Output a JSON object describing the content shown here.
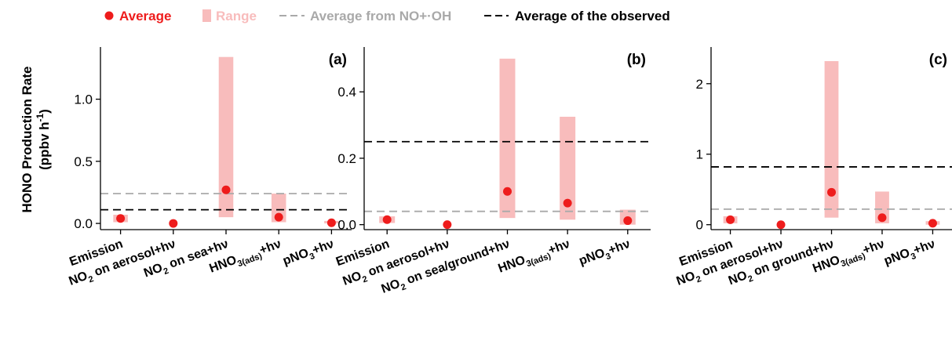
{
  "legend": {
    "items": [
      {
        "label": "Average",
        "kind": "dot",
        "color": "#ee1c1c"
      },
      {
        "label": "Range",
        "kind": "rect",
        "color": "#f8bcbc"
      },
      {
        "label": "Average from NO+·OH",
        "kind": "dash",
        "color": "#a9a9a9"
      },
      {
        "label": "Average of the observed",
        "kind": "dash",
        "color": "#000000"
      }
    ]
  },
  "ylabel": {
    "line1": "HONO Production Rate",
    "line2": "(ppbv h",
    "sup": "-1",
    "close": ")"
  },
  "colors": {
    "average": "#ee1c1c",
    "range": "#f8bcbc",
    "no_oh": "#a9a9a9",
    "observed": "#000000"
  },
  "chart_data": [
    {
      "type": "scatter-range",
      "panel_label": "(a)",
      "categories": [
        {
          "pre": "Emission",
          "sub": "",
          "post": ""
        },
        {
          "pre": "NO",
          "sub": "2",
          "post": " on aerosol+hν"
        },
        {
          "pre": "NO",
          "sub": "2",
          "post": " on sea+hν"
        },
        {
          "pre": "HNO",
          "sub": "3(ads)",
          "post": "+hν"
        },
        {
          "pre": "pNO",
          "sub": "3",
          "post": "+hν"
        }
      ],
      "average": [
        0.04,
        0.0,
        0.27,
        0.05,
        0.005
      ],
      "range": [
        [
          0.01,
          0.07
        ],
        null,
        [
          0.05,
          1.34
        ],
        [
          0.01,
          0.24
        ],
        [
          0.0,
          0.02
        ]
      ],
      "avg_no_oh": 0.24,
      "avg_observed": 0.11,
      "ylim": [
        -0.05,
        1.42
      ],
      "yticks": [
        0.0,
        0.5,
        1.0
      ],
      "ytick_labels": [
        "0.0",
        "0.5",
        "1.0"
      ]
    },
    {
      "type": "scatter-range",
      "panel_label": "(b)",
      "categories": [
        {
          "pre": "Emission",
          "sub": "",
          "post": ""
        },
        {
          "pre": "NO",
          "sub": "2",
          "post": " on aerosol+hν"
        },
        {
          "pre": "NO",
          "sub": "2",
          "post": " on sea/ground+hν"
        },
        {
          "pre": "HNO",
          "sub": "3(ads)",
          "post": "+hν"
        },
        {
          "pre": "pNO",
          "sub": "3",
          "post": "+hν"
        }
      ],
      "average": [
        0.015,
        0.0,
        0.1,
        0.065,
        0.012
      ],
      "range": [
        [
          0.005,
          0.025
        ],
        null,
        [
          0.02,
          0.5
        ],
        [
          0.015,
          0.325
        ],
        [
          0.0,
          0.045
        ]
      ],
      "avg_no_oh": 0.04,
      "avg_observed": 0.25,
      "ylim": [
        -0.015,
        0.535
      ],
      "yticks": [
        0.0,
        0.2,
        0.4
      ],
      "ytick_labels": [
        "0.0",
        "0.2",
        "0.4"
      ]
    },
    {
      "type": "scatter-range",
      "panel_label": "(c)",
      "categories": [
        {
          "pre": "Emission",
          "sub": "",
          "post": ""
        },
        {
          "pre": "NO",
          "sub": "2",
          "post": " on aerosol+hν"
        },
        {
          "pre": "NO",
          "sub": "2",
          "post": " on ground+hν"
        },
        {
          "pre": "HNO",
          "sub": "3(ads)",
          "post": "+hν"
        },
        {
          "pre": "pNO",
          "sub": "3",
          "post": "+hν"
        }
      ],
      "average": [
        0.07,
        0.0,
        0.46,
        0.1,
        0.02
      ],
      "range": [
        [
          0.02,
          0.12
        ],
        null,
        [
          0.1,
          2.32
        ],
        [
          0.02,
          0.47
        ],
        [
          0.0,
          0.05
        ]
      ],
      "avg_no_oh": 0.22,
      "avg_observed": 0.82,
      "ylim": [
        -0.07,
        2.52
      ],
      "yticks": [
        0,
        1,
        2
      ],
      "ytick_labels": [
        "0",
        "1",
        "2"
      ]
    }
  ]
}
